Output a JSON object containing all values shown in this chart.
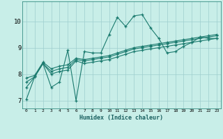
{
  "xlabel": "Humidex (Indice chaleur)",
  "bg_color": "#c8eee8",
  "line_color": "#1a7a6e",
  "grid_color": "#9ecece",
  "xlim": [
    -0.5,
    23.5
  ],
  "ylim": [
    6.7,
    10.75
  ],
  "xticks": [
    0,
    1,
    2,
    3,
    4,
    5,
    6,
    7,
    8,
    9,
    10,
    11,
    12,
    13,
    14,
    15,
    16,
    17,
    18,
    19,
    20,
    21,
    22,
    23
  ],
  "yticks": [
    7,
    8,
    9,
    10
  ],
  "lines": [
    [
      7.05,
      7.9,
      8.4,
      7.5,
      7.7,
      8.9,
      7.0,
      8.85,
      8.8,
      8.8,
      9.5,
      10.15,
      9.8,
      10.2,
      10.25,
      9.75,
      9.35,
      8.8,
      8.85,
      9.05,
      9.2,
      9.4,
      9.35,
      9.35
    ],
    [
      7.5,
      7.9,
      8.4,
      8.0,
      8.1,
      8.15,
      8.5,
      8.4,
      8.45,
      8.5,
      8.55,
      8.65,
      8.75,
      8.85,
      8.9,
      8.95,
      9.0,
      9.05,
      9.1,
      9.15,
      9.2,
      9.25,
      9.3,
      9.35
    ],
    [
      7.7,
      7.9,
      8.4,
      8.1,
      8.2,
      8.25,
      8.55,
      8.5,
      8.55,
      8.6,
      8.65,
      8.75,
      8.85,
      8.95,
      9.0,
      9.05,
      9.1,
      9.15,
      9.2,
      9.25,
      9.3,
      9.35,
      9.4,
      9.45
    ],
    [
      7.85,
      7.95,
      8.45,
      8.2,
      8.3,
      8.35,
      8.6,
      8.55,
      8.6,
      8.65,
      8.7,
      8.8,
      8.9,
      9.0,
      9.05,
      9.1,
      9.15,
      9.2,
      9.25,
      9.3,
      9.35,
      9.4,
      9.45,
      9.5
    ]
  ]
}
